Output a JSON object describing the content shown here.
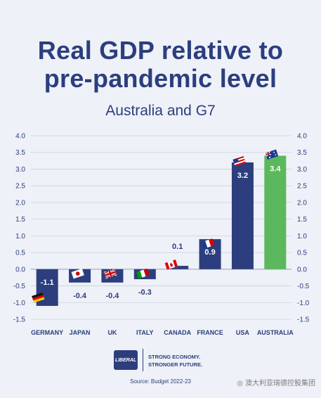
{
  "title_line1": "Real GDP relative to",
  "title_line2": "pre-pandemic level",
  "subtitle": "Australia and G7",
  "chart_data": {
    "type": "bar",
    "title": "Real GDP relative to pre-pandemic level",
    "subtitle": "Australia and G7",
    "categories": [
      "GERMANY",
      "JAPAN",
      "UK",
      "ITALY",
      "CANADA",
      "FRANCE",
      "USA",
      "AUSTRALIA"
    ],
    "values": [
      -1.1,
      -0.4,
      -0.4,
      -0.3,
      0.1,
      0.9,
      3.2,
      3.4
    ],
    "value_labels": [
      "-1.1",
      "-0.4",
      "-0.4",
      "-0.3",
      "0.1",
      "0.9",
      "3.2",
      "3.4"
    ],
    "flags": [
      "germany-flag-icon",
      "japan-flag-icon",
      "uk-flag-icon",
      "italy-flag-icon",
      "canada-flag-icon",
      "france-flag-icon",
      "usa-flag-icon",
      "australia-flag-icon"
    ],
    "ylim": [
      -1.5,
      4.0
    ],
    "yticks": [
      "4.0",
      "3.5",
      "3.0",
      "2.5",
      "2.0",
      "1.5",
      "1.0",
      "0.5",
      "0.0",
      "-0.5",
      "-1.0",
      "-1.5"
    ],
    "ytick_values": [
      4.0,
      3.5,
      3.0,
      2.5,
      2.0,
      1.5,
      1.0,
      0.5,
      0.0,
      -0.5,
      -1.0,
      -1.5
    ],
    "grid": true,
    "colors": {
      "default": "#2c3e7e",
      "highlight": "#5cb85c",
      "axis": "#2c3e7e",
      "grid": "#c9d0e0"
    },
    "highlight_category": "AUSTRALIA"
  },
  "logo": {
    "text": "LIBERAL",
    "tagline_line1": "STRONG ECONOMY.",
    "tagline_line2": "STRONGER FUTURE."
  },
  "source": "Source: Budget 2022-23",
  "watermark": "澳大利亚瑞德控股集团"
}
